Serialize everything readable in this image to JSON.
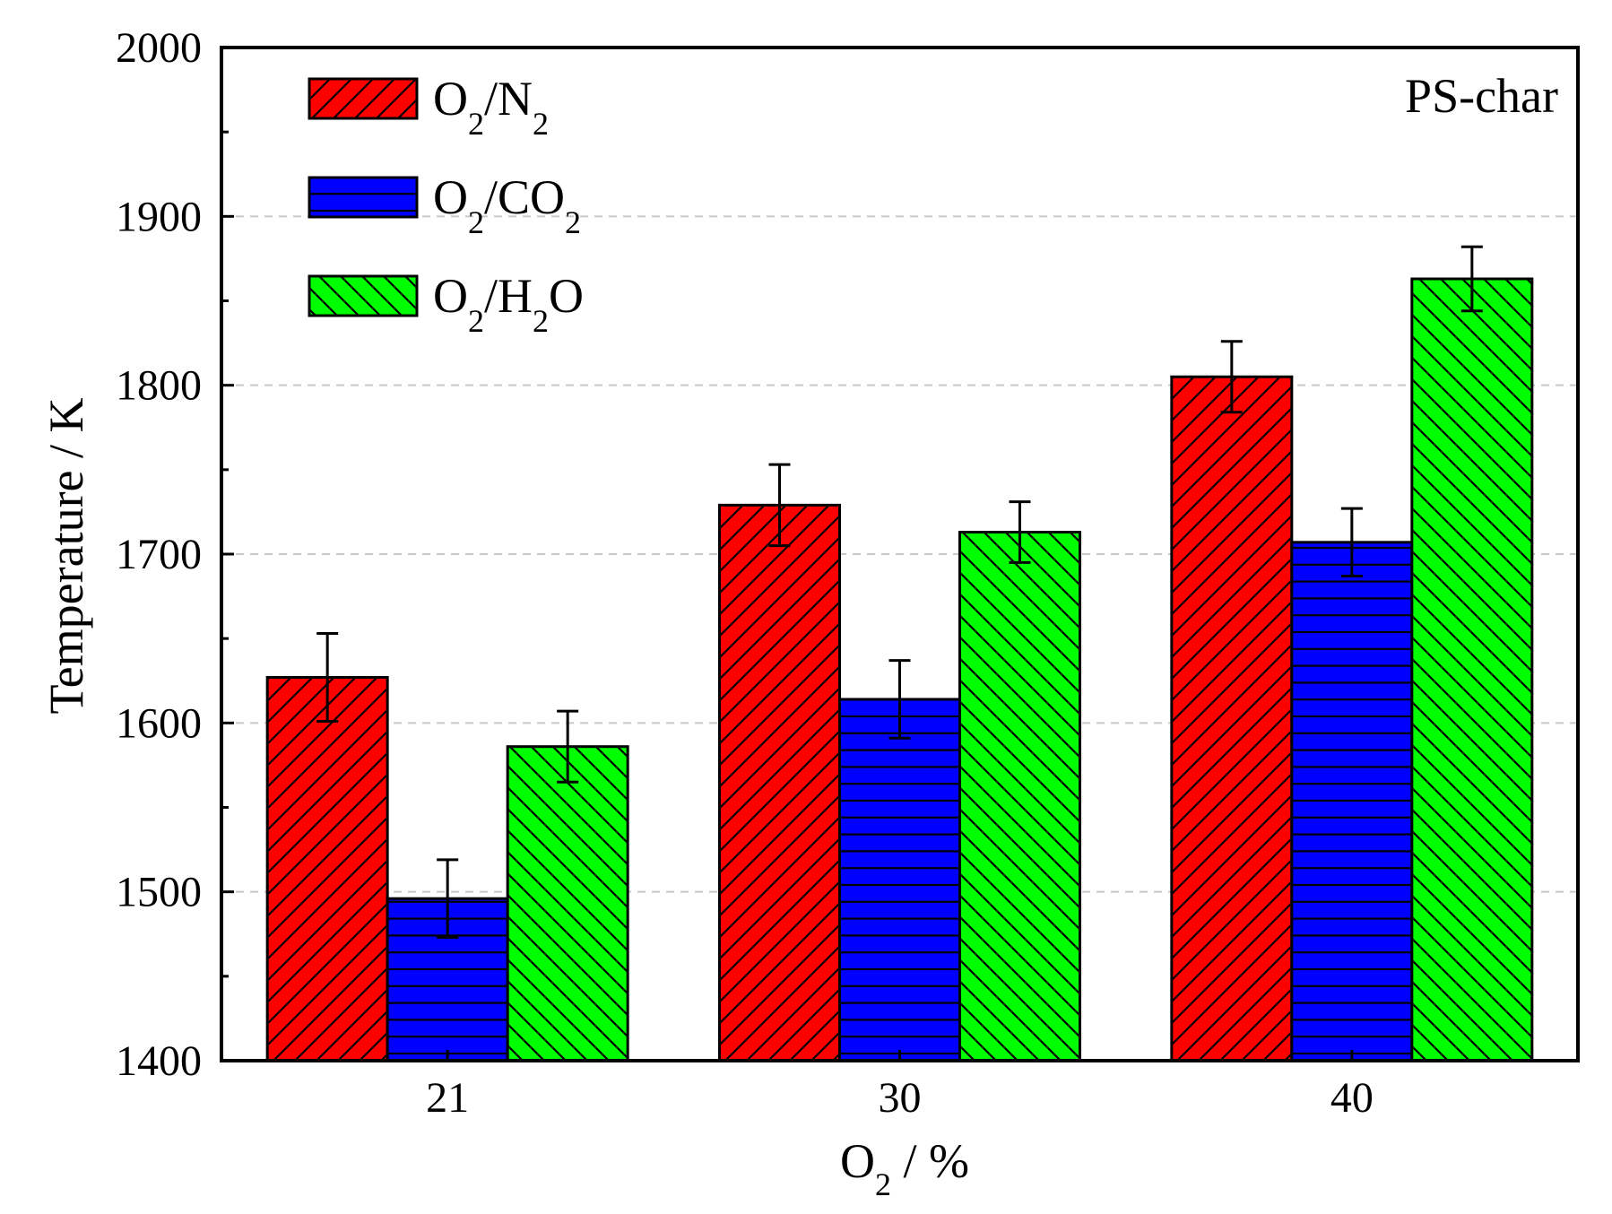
{
  "chart_data": {
    "type": "bar",
    "title": "",
    "annotation": "PS-char",
    "xlabel": "O2 / %",
    "xlabel_parts": {
      "main": "O",
      "sub": "2",
      "rest": " / %"
    },
    "ylabel": "Temperature / K",
    "categories": [
      "21",
      "30",
      "40"
    ],
    "ylim": [
      1400,
      2000
    ],
    "yticks": [
      1400,
      1500,
      1600,
      1700,
      1800,
      1900,
      2000
    ],
    "grid": {
      "y": true,
      "style": "dashed"
    },
    "legend_position": "top-left",
    "series": [
      {
        "name": "O2/N2",
        "label_parts": [
          [
            "O",
            "n"
          ],
          [
            "2",
            "s"
          ],
          [
            "/N",
            "n"
          ],
          [
            "2",
            "s"
          ]
        ],
        "color": "#ff0000",
        "hatch": "diagonal-up",
        "values": [
          1627,
          1729,
          1805
        ],
        "errors": [
          26,
          24,
          21
        ]
      },
      {
        "name": "O2/CO2",
        "label_parts": [
          [
            "O",
            "n"
          ],
          [
            "2",
            "s"
          ],
          [
            "/CO",
            "n"
          ],
          [
            "2",
            "s"
          ]
        ],
        "color": "#0000ff",
        "hatch": "horizontal",
        "values": [
          1496,
          1614,
          1707
        ],
        "errors": [
          23,
          23,
          20
        ]
      },
      {
        "name": "O2/H2O",
        "label_parts": [
          [
            "O",
            "n"
          ],
          [
            "2",
            "s"
          ],
          [
            "/H",
            "n"
          ],
          [
            "2",
            "s"
          ],
          [
            "O",
            "n"
          ]
        ],
        "color": "#00ff00",
        "hatch": "diagonal-down",
        "values": [
          1586,
          1713,
          1863
        ],
        "errors": [
          21,
          18,
          19
        ]
      }
    ]
  }
}
